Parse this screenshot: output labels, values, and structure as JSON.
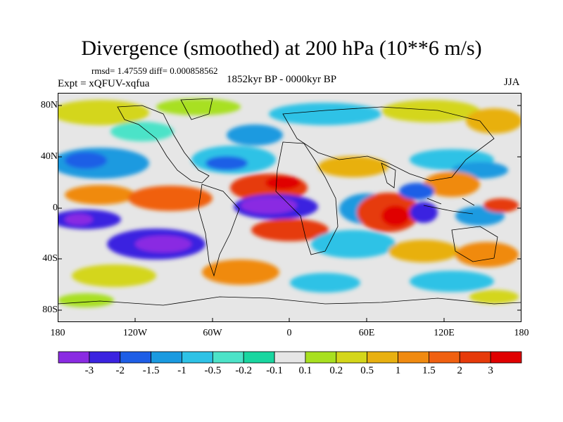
{
  "title": "Divergence (smoothed) at 200 hPa (10**6 m/s)",
  "stats": "rmsd= 1.47559 diff= 0.000858562",
  "expt": "Expt = xQFUV-xqfua",
  "period": "1852kyr BP - 0000kyr BP",
  "season": "JJA",
  "lat_labels": [
    "80N",
    "40N",
    "0",
    "40S",
    "80S"
  ],
  "lon_labels": [
    "180",
    "120W",
    "60W",
    "0",
    "60E",
    "120E",
    "180"
  ],
  "colorbar": {
    "labels": [
      "-3",
      "-2",
      "-1.5",
      "-1",
      "-0.5",
      "-0.2",
      "-0.1",
      "0.1",
      "0.2",
      "0.5",
      "1",
      "1.5",
      "2",
      "3"
    ],
    "colors": [
      "#8a2be2",
      "#3b23e0",
      "#1e5ee6",
      "#1a9ae0",
      "#2ec2e6",
      "#4ce3c8",
      "#19d6a0",
      "#e6e6e6",
      "#a8e020",
      "#d4d61a",
      "#e8b010",
      "#f08a10",
      "#f06010",
      "#e63a0a",
      "#e00000"
    ]
  },
  "map": {
    "background": "#e6e6e6",
    "coast_color": "#000000"
  }
}
